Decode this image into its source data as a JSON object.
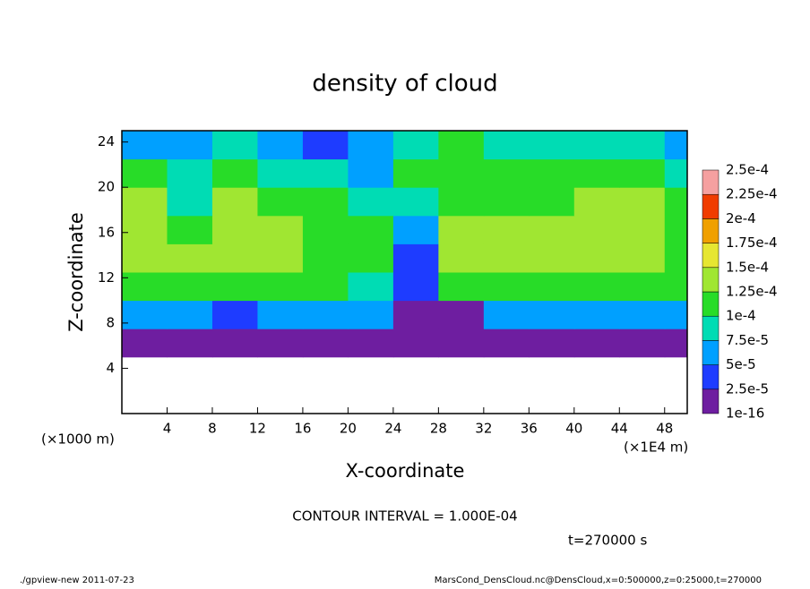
{
  "chart_data": {
    "type": "heatmap",
    "title": "density of cloud",
    "x_label": "X-coordinate",
    "y_label": "Z-coordinate",
    "x_unit": "(×1E4 m)",
    "y_unit": "(×1000 m)",
    "xlim": [
      0,
      50
    ],
    "ylim": [
      0,
      25
    ],
    "xticks": [
      4,
      8,
      12,
      16,
      20,
      24,
      28,
      32,
      36,
      40,
      44,
      48
    ],
    "yticks": [
      4,
      8,
      12,
      16,
      20,
      24
    ],
    "x_edges": [
      0,
      4,
      8,
      12,
      16,
      20,
      24,
      28,
      32,
      36,
      40,
      44,
      48,
      50
    ],
    "y_edges": [
      0,
      2.5,
      5,
      7.5,
      10,
      12.5,
      15,
      17.5,
      20,
      22.5,
      25
    ],
    "values": [
      [
        null,
        null,
        null,
        null,
        null,
        null,
        null,
        null,
        null,
        null,
        null,
        null,
        null
      ],
      [
        null,
        null,
        null,
        null,
        null,
        null,
        null,
        null,
        null,
        null,
        null,
        null,
        null
      ],
      [
        1e-05,
        1e-05,
        1e-05,
        1e-05,
        1e-05,
        1e-05,
        1e-05,
        1e-05,
        1e-05,
        1e-05,
        1e-05,
        1e-05,
        1e-05
      ],
      [
        7e-05,
        6e-05,
        3e-05,
        6e-05,
        7e-05,
        6e-05,
        1e-05,
        1e-05,
        5e-05,
        7e-05,
        7e-05,
        7e-05,
        7e-05
      ],
      [
        0.00012,
        0.00011,
        0.00012,
        0.00011,
        0.0001,
        9e-05,
        3e-05,
        0.0001,
        0.00011,
        0.00012,
        0.00012,
        0.00012,
        0.00011
      ],
      [
        0.000145,
        0.00013,
        0.00014,
        0.000135,
        0.00012,
        0.00011,
        4e-05,
        0.00013,
        0.00013,
        0.00013,
        0.000135,
        0.000135,
        0.00012
      ],
      [
        0.00014,
        0.00011,
        0.000135,
        0.00013,
        0.00012,
        0.00011,
        6e-05,
        0.00013,
        0.00013,
        0.00013,
        0.000135,
        0.00013,
        0.00012
      ],
      [
        0.00013,
        9e-05,
        0.00013,
        0.00012,
        0.00011,
        8e-05,
        9e-05,
        0.00012,
        0.00012,
        0.00012,
        0.00013,
        0.00013,
        0.00011
      ],
      [
        0.00011,
        8e-05,
        0.00012,
        9e-05,
        8e-05,
        7e-05,
        0.0001,
        0.00011,
        0.0001,
        0.0001,
        0.00011,
        0.00012,
        9e-05
      ],
      [
        7e-05,
        6e-05,
        8e-05,
        5e-05,
        4e-05,
        7e-05,
        9e-05,
        0.0001,
        9e-05,
        8e-05,
        8e-05,
        9e-05,
        7e-05
      ]
    ],
    "colorbar": {
      "levels": [
        {
          "value": 1e-16,
          "label": "1e-16"
        },
        {
          "value": 2.5e-05,
          "label": "2.5e-5"
        },
        {
          "value": 5e-05,
          "label": "5e-5"
        },
        {
          "value": 7.5e-05,
          "label": "7.5e-5"
        },
        {
          "value": 0.0001,
          "label": "1e-4"
        },
        {
          "value": 0.000125,
          "label": "1.25e-4"
        },
        {
          "value": 0.00015,
          "label": "1.5e-4"
        },
        {
          "value": 0.000175,
          "label": "1.75e-4"
        },
        {
          "value": 0.0002,
          "label": "2e-4"
        },
        {
          "value": 0.000225,
          "label": "2.25e-4"
        },
        {
          "value": 0.00025,
          "label": "2.5e-4"
        }
      ],
      "colors": [
        "#6e1ea0",
        "#1e3cff",
        "#00a0ff",
        "#00dcb4",
        "#28dc28",
        "#a0e632",
        "#e6e632",
        "#f0a000",
        "#f03c00",
        "#f5a0a0"
      ]
    },
    "contour_note": "CONTOUR INTERVAL = 1.000E-04",
    "time_note": "t=270000 s",
    "footer_left": "./gpview-new  2011-07-23",
    "footer_right": "MarsCond_DensCloud.nc@DensCloud,x=0:500000,z=0:25000,t=270000"
  }
}
